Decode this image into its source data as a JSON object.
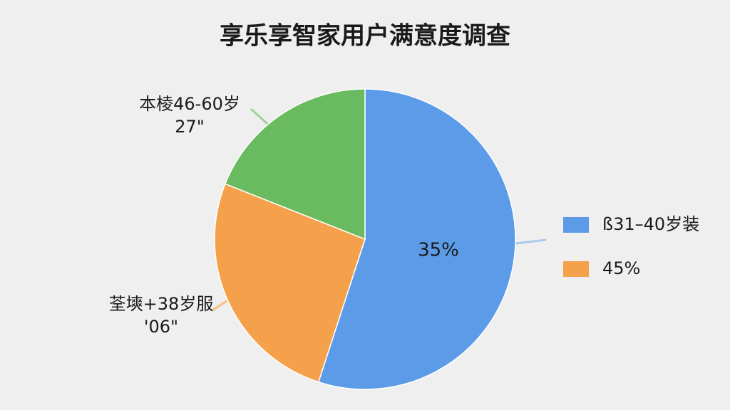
{
  "chart_data": {
    "type": "pie",
    "title": "享乐享智家用户满意度调查",
    "values": [
      55,
      26,
      19
    ],
    "colors": [
      "#5b9be8",
      "#f5a04a",
      "#6aba5f"
    ],
    "legend": [
      {
        "label": "ß31–40岁装",
        "color": "#5b9be8"
      },
      {
        "label": "45%",
        "color": "#f5a04a"
      }
    ],
    "annotations": [
      {
        "lines": [
          "35%"
        ]
      },
      {
        "lines": [
          "本棱46-60岁",
          "27\""
        ]
      },
      {
        "lines": [
          "荃塽+38岁服",
          "'06\""
        ]
      }
    ]
  }
}
